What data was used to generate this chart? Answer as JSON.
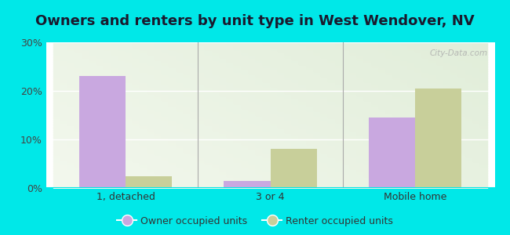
{
  "title": "Owners and renters by unit type in West Wendover, NV",
  "categories": [
    "1, detached",
    "3 or 4",
    "Mobile home"
  ],
  "owner_values": [
    23.0,
    1.5,
    14.5
  ],
  "renter_values": [
    2.5,
    8.0,
    20.5
  ],
  "owner_color": "#c9a8e0",
  "renter_color": "#c8cf9a",
  "background_color": "#00e8e8",
  "ylim": [
    0,
    30
  ],
  "yticks": [
    0,
    10,
    20,
    30
  ],
  "ytick_labels": [
    "0%",
    "10%",
    "20%",
    "30%"
  ],
  "bar_width": 0.32,
  "title_fontsize": 13,
  "legend_labels": [
    "Owner occupied units",
    "Renter occupied units"
  ],
  "watermark": "City-Data.com",
  "grid_color": "#cccccc",
  "divider_color": "#aaaaaa"
}
